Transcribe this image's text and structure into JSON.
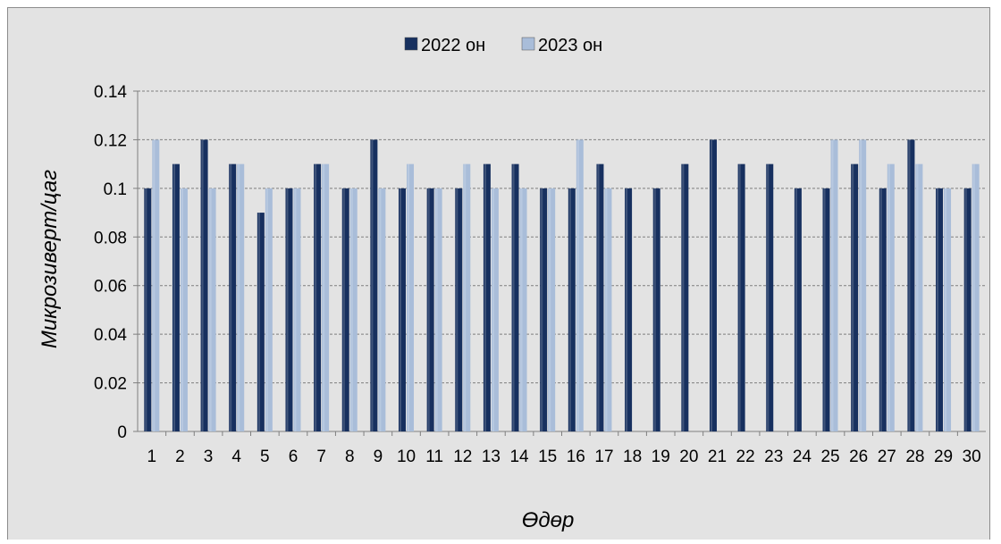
{
  "chart_data": {
    "type": "bar",
    "title": "",
    "xlabel": "Өдөр",
    "ylabel": "Микрозиверт/цаг",
    "categories": [
      "1",
      "2",
      "3",
      "4",
      "5",
      "6",
      "7",
      "8",
      "9",
      "10",
      "11",
      "12",
      "13",
      "14",
      "15",
      "16",
      "17",
      "18",
      "19",
      "20",
      "21",
      "22",
      "23",
      "24",
      "25",
      "26",
      "27",
      "28",
      "29",
      "30"
    ],
    "series": [
      {
        "name": "2022 он",
        "color": "#17305f",
        "values": [
          0.1,
          0.11,
          0.12,
          0.11,
          0.09,
          0.1,
          0.11,
          0.1,
          0.12,
          0.1,
          0.1,
          0.1,
          0.11,
          0.11,
          0.1,
          0.1,
          0.11,
          0.1,
          0.1,
          0.11,
          0.12,
          0.11,
          0.11,
          0.1,
          0.1,
          0.11,
          0.1,
          0.12,
          0.1,
          0.1
        ]
      },
      {
        "name": "2023 он",
        "color": "#a9bdd9",
        "values": [
          0.12,
          0.1,
          0.1,
          0.11,
          0.1,
          0.1,
          0.11,
          0.1,
          0.1,
          0.11,
          0.1,
          0.11,
          0.1,
          0.1,
          0.1,
          0.12,
          0.1,
          null,
          null,
          null,
          null,
          null,
          null,
          null,
          0.12,
          0.12,
          0.11,
          0.11,
          0.1,
          0.11
        ]
      }
    ],
    "ylim": [
      0,
      0.14
    ],
    "yticks": [
      "0",
      "0.02",
      "0.04",
      "0.06",
      "0.08",
      "0.1",
      "0.12",
      "0.14"
    ],
    "grid": true,
    "legend_position": "top",
    "background_color": "#e3e3e3"
  }
}
